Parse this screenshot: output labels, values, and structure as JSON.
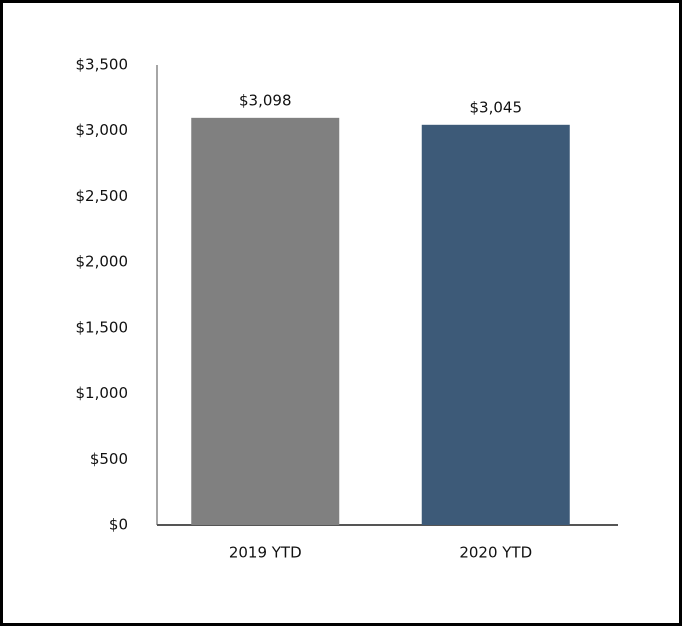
{
  "chart_data": {
    "type": "bar",
    "categories": [
      "2019 YTD",
      "2020 YTD"
    ],
    "values": [
      3098,
      3045
    ],
    "value_labels": [
      "$3,098",
      "$3,045"
    ],
    "colors": [
      "#808080",
      "#3d5a78"
    ],
    "ylim": [
      0,
      3500
    ],
    "yticks": [
      {
        "value": 0,
        "label": "$0"
      },
      {
        "value": 500,
        "label": "$500"
      },
      {
        "value": 1000,
        "label": "$1,000"
      },
      {
        "value": 1500,
        "label": "$1,500"
      },
      {
        "value": 2000,
        "label": "$2,000"
      },
      {
        "value": 2500,
        "label": "$2,500"
      },
      {
        "value": 3000,
        "label": "$3,000"
      },
      {
        "value": 3500,
        "label": "$3,500"
      }
    ],
    "grid": false
  }
}
